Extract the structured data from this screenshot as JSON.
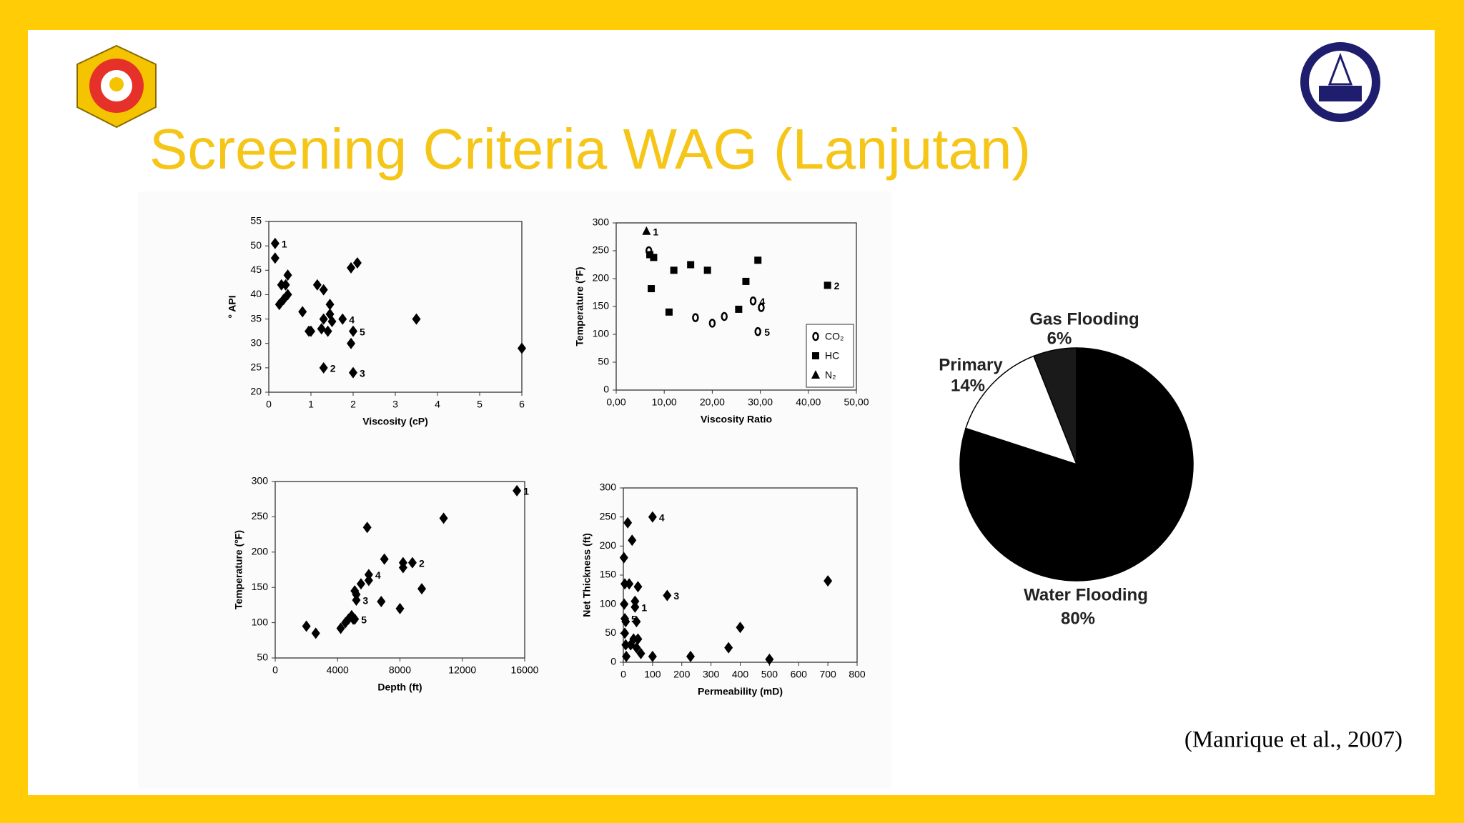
{
  "slide": {
    "title": "Screening Criteria WAG (Lanjutan)",
    "citation": "(Manrique et al., 2007)"
  },
  "chart_data": [
    {
      "type": "scatter",
      "x_label": "Viscosity (cP)",
      "y_label": "° API",
      "marker": "diamond",
      "color": "#000000",
      "xlim": [
        0,
        6
      ],
      "ylim": [
        20,
        55
      ],
      "xticks": [
        0,
        1,
        2,
        3,
        4,
        5,
        6
      ],
      "yticks": [
        20,
        25,
        30,
        35,
        40,
        45,
        50,
        55
      ],
      "x": [
        0.15,
        0.15,
        0.3,
        0.4,
        0.45,
        0.45,
        0.25,
        0.35,
        0.8,
        1.0,
        0.95,
        1.15,
        1.3,
        1.3,
        1.25,
        1.45,
        1.45,
        1.5,
        1.4,
        1.75,
        1.3,
        1.95,
        2.1,
        2.0,
        1.95,
        2.0,
        3.5,
        6.0
      ],
      "values": [
        50.5,
        47.5,
        42,
        42,
        44,
        40,
        38,
        39,
        36.5,
        32.5,
        32.5,
        42,
        41,
        35,
        33,
        38,
        36,
        34.5,
        32.5,
        35,
        25,
        45.5,
        46.5,
        32.5,
        30,
        24,
        35,
        29
      ],
      "point_labels": [
        "1",
        null,
        null,
        null,
        null,
        null,
        null,
        null,
        null,
        null,
        null,
        null,
        null,
        null,
        null,
        null,
        null,
        null,
        null,
        "4",
        "2",
        null,
        null,
        "5",
        null,
        "3",
        null,
        null
      ]
    },
    {
      "type": "scatter",
      "x_label": "Viscosity Ratio",
      "y_label": "Temperature (°F)",
      "legend": "lower right",
      "xlim": [
        0,
        50
      ],
      "ylim": [
        0,
        300
      ],
      "xticks": [
        {
          "value": 0,
          "label": "0,00"
        },
        {
          "value": 10,
          "label": "10,00"
        },
        {
          "value": 20,
          "label": "20,00"
        },
        {
          "value": 30,
          "label": "30,00"
        },
        {
          "value": 40,
          "label": "40,00"
        },
        {
          "value": 50,
          "label": "50,00"
        }
      ],
      "yticks": [
        0,
        50,
        100,
        150,
        200,
        250,
        300
      ],
      "series": [
        {
          "name": "CO₂",
          "marker": "circle",
          "color": "#000000",
          "x": [
            6.8,
            16.5,
            20,
            22.5,
            28.5,
            30.2,
            29.5
          ],
          "values": [
            250,
            130,
            120,
            132,
            160,
            148,
            105
          ],
          "point_labels": [
            null,
            null,
            null,
            null,
            "4",
            null,
            "5"
          ]
        },
        {
          "name": "HC",
          "marker": "square",
          "color": "#000000",
          "x": [
            7,
            7.8,
            7.3,
            11,
            12,
            15.5,
            19,
            25.5,
            27,
            29.5,
            44
          ],
          "values": [
            243,
            238,
            182,
            140,
            215,
            225,
            215,
            145,
            195,
            233,
            188
          ],
          "point_labels": [
            null,
            null,
            null,
            null,
            null,
            null,
            null,
            null,
            null,
            null,
            "2"
          ]
        },
        {
          "name": "N₂",
          "marker": "triangle",
          "color": "#000000",
          "x": [
            6.3
          ],
          "values": [
            285
          ],
          "point_labels": [
            "1"
          ]
        }
      ]
    },
    {
      "type": "scatter",
      "x_label": "Depth (ft)",
      "y_label": "Temperature (°F)",
      "marker": "diamond",
      "color": "#000000",
      "xlim": [
        0,
        16000
      ],
      "ylim": [
        50,
        300
      ],
      "xticks": [
        0,
        4000,
        8000,
        12000,
        16000
      ],
      "yticks": [
        50,
        100,
        150,
        200,
        250,
        300
      ],
      "x": [
        2000,
        2600,
        4200,
        4500,
        4700,
        4900,
        5000,
        5100,
        5100,
        5200,
        5200,
        5500,
        6000,
        6000,
        5900,
        6800,
        7000,
        8000,
        8200,
        8200,
        8800,
        9400,
        10800,
        15500
      ],
      "values": [
        95,
        85,
        92,
        100,
        105,
        110,
        105,
        105,
        145,
        140,
        132,
        155,
        160,
        168,
        235,
        130,
        190,
        120,
        178,
        185,
        185,
        148,
        248,
        287
      ],
      "point_labels": [
        null,
        null,
        null,
        null,
        null,
        null,
        null,
        "5",
        null,
        null,
        "3",
        null,
        null,
        "4",
        null,
        null,
        null,
        null,
        null,
        null,
        "2",
        null,
        null,
        "1"
      ]
    },
    {
      "type": "scatter",
      "x_label": "Permeability (mD)",
      "y_label": "Net Thickness (ft)",
      "marker": "diamond",
      "color": "#000000",
      "xlim": [
        0,
        800
      ],
      "ylim": [
        0,
        300
      ],
      "xticks": [
        0,
        100,
        200,
        300,
        400,
        500,
        600,
        700,
        800
      ],
      "yticks": [
        0,
        50,
        100,
        150,
        200,
        250,
        300
      ],
      "x": [
        2,
        5,
        3,
        5,
        8,
        5,
        8,
        10,
        15,
        20,
        25,
        30,
        35,
        40,
        40,
        45,
        50,
        45,
        50,
        60,
        100,
        100,
        150,
        230,
        360,
        400,
        500,
        700
      ],
      "values": [
        180,
        135,
        100,
        75,
        70,
        50,
        30,
        10,
        240,
        135,
        30,
        210,
        40,
        105,
        95,
        70,
        130,
        25,
        40,
        15,
        250,
        10,
        115,
        10,
        25,
        60,
        5,
        140
      ],
      "point_labels": [
        null,
        null,
        null,
        "5",
        null,
        null,
        null,
        null,
        null,
        null,
        null,
        null,
        null,
        null,
        "1",
        null,
        null,
        null,
        null,
        null,
        "4",
        null,
        "3",
        null,
        null,
        null,
        null,
        null
      ]
    },
    {
      "type": "pie",
      "categories": [
        "Gas Flooding",
        "Primary",
        "Water Flooding"
      ],
      "values": [
        6,
        14,
        80
      ],
      "value_labels": [
        "6%",
        "14%",
        "80%"
      ],
      "colors": [
        "#1a1a1a",
        "#ffffff",
        "#000000"
      ]
    }
  ]
}
